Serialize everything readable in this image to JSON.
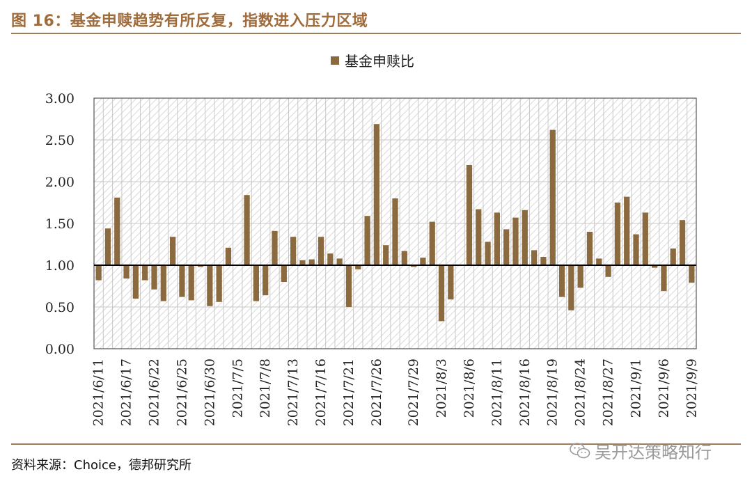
{
  "figure": {
    "title": "图 16：基金申赎趋势有所反复，指数进入压力区域",
    "source": "资料来源：Choice，德邦研究所",
    "watermark": "吴开达策略知行"
  },
  "colors": {
    "bar": "#8c6a3f",
    "title": "#a06c3c",
    "rule": "#a07c5a",
    "grid": "#c8c8c8",
    "hatch": "#d6d6d6"
  },
  "chart_data": {
    "type": "bar",
    "legend": "基金申赎比",
    "legend_position": "top-center",
    "baseline": 1.0,
    "ylim": [
      0,
      3
    ],
    "yticks": [
      "0.00",
      "0.50",
      "1.00",
      "1.50",
      "2.00",
      "2.50",
      "3.00"
    ],
    "grid": true,
    "xtick_labels": [
      "2021/6/11",
      "2021/6/17",
      "2021/6/22",
      "2021/6/25",
      "2021/6/30",
      "2021/7/5",
      "2021/7/8",
      "2021/7/13",
      "2021/7/16",
      "2021/7/21",
      "2021/7/26",
      "2021/7/29",
      "2021/8/3",
      "2021/8/6",
      "2021/8/11",
      "2021/8/16",
      "2021/8/19",
      "2021/8/24",
      "2021/8/27",
      "2021/9/1",
      "2021/9/6",
      "2021/9/9"
    ],
    "values": [
      0.82,
      1.44,
      1.81,
      0.84,
      0.6,
      0.82,
      0.71,
      0.57,
      1.34,
      0.62,
      0.58,
      0.98,
      0.51,
      0.56,
      1.21,
      1.0,
      1.84,
      0.57,
      0.64,
      1.41,
      0.8,
      1.34,
      1.06,
      1.07,
      1.34,
      1.14,
      1.08,
      0.5,
      0.95,
      1.59,
      2.69,
      1.24,
      1.8,
      1.17,
      0.98,
      1.09,
      1.52,
      0.33,
      0.59,
      1.0,
      2.2,
      1.67,
      1.28,
      1.63,
      1.43,
      1.57,
      1.66,
      1.18,
      1.1,
      2.62,
      0.62,
      0.46,
      0.73,
      1.4,
      1.08,
      0.86,
      1.75,
      1.82,
      1.37,
      1.63,
      0.97,
      0.69,
      1.2,
      1.54,
      0.79
    ]
  }
}
